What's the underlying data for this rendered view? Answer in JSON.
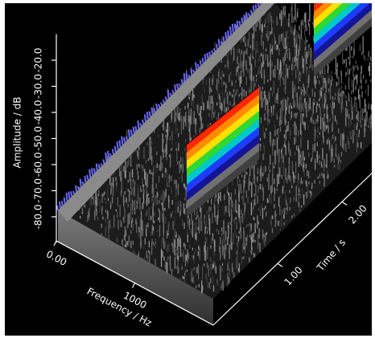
{
  "chart_data": {
    "type": "waterfall",
    "x_label": "Frequency / Hz",
    "y_label": "Time / s",
    "z_label": "Amplitude / dB",
    "xlim": [
      0,
      2000
    ],
    "xticks": [
      {
        "value": 0,
        "label": "0.00"
      },
      1000
    ],
    "ylim": [
      0,
      2.5
    ],
    "yticks": [
      {
        "value": 1,
        "label": "1.00"
      },
      {
        "value": 2,
        "label": "2.00"
      }
    ],
    "zlim": [
      -90,
      -10
    ],
    "zticks": [
      {
        "value": -20,
        "label": "-20.0"
      },
      {
        "value": -30,
        "label": "-30.0"
      },
      {
        "value": -40,
        "label": "-40.0"
      },
      {
        "value": -50,
        "label": "-50.0"
      },
      {
        "value": -60,
        "label": "-60.0"
      },
      {
        "value": -70,
        "label": "-70.0"
      },
      {
        "value": -80,
        "label": "-80.0"
      }
    ]
  }
}
